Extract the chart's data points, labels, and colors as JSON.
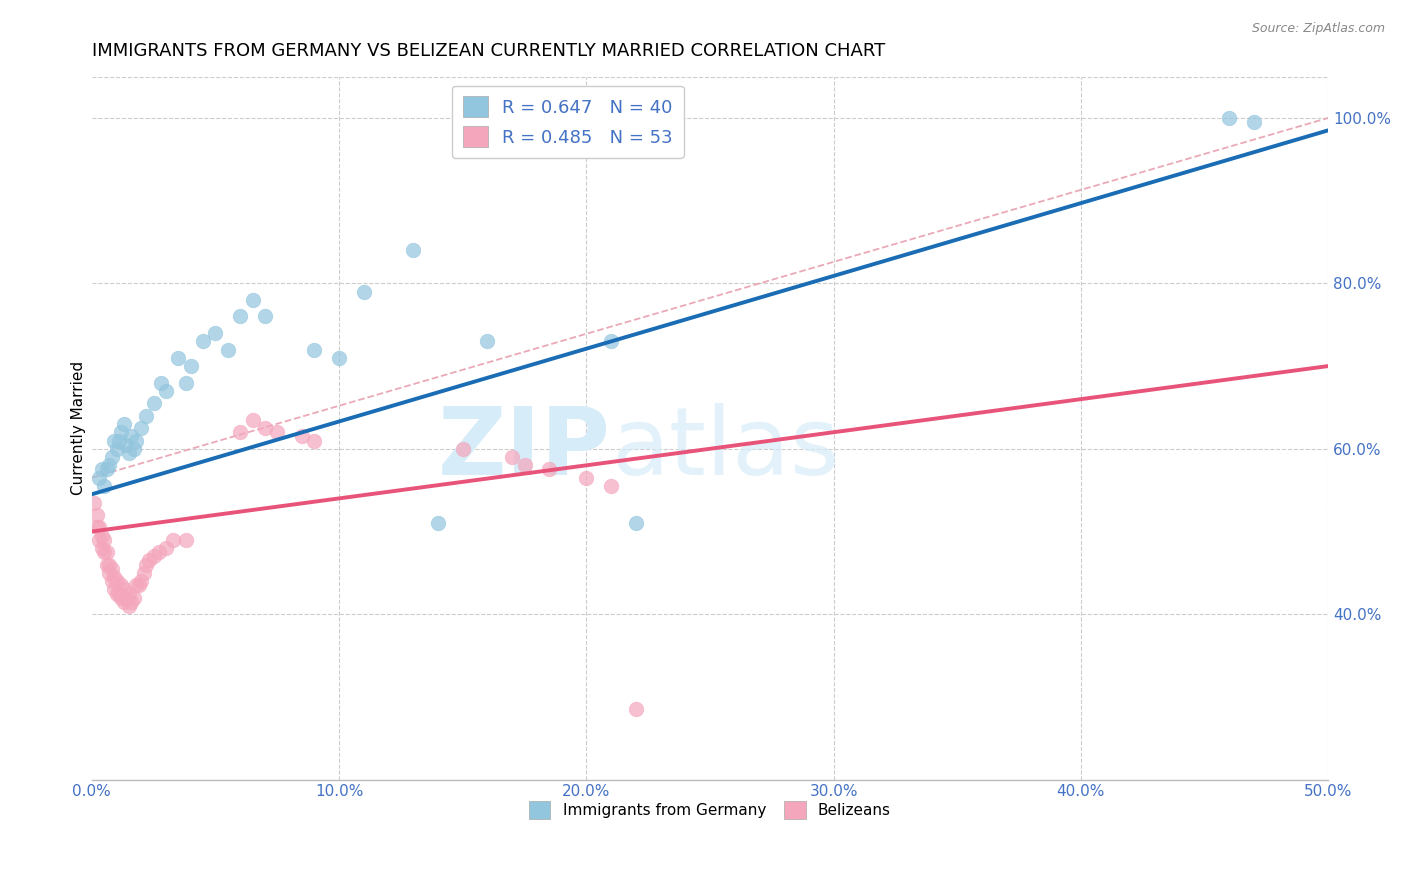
{
  "title": "IMMIGRANTS FROM GERMANY VS BELIZEAN CURRENTLY MARRIED CORRELATION CHART",
  "source": "Source: ZipAtlas.com",
  "ylabel": "Currently Married",
  "xlim": [
    0.0,
    0.5
  ],
  "ylim": [
    0.2,
    1.05
  ],
  "xticks": [
    0.0,
    0.1,
    0.2,
    0.3,
    0.4,
    0.5
  ],
  "xticklabels": [
    "0.0%",
    "10.0%",
    "20.0%",
    "30.0%",
    "40.0%",
    "50.0%"
  ],
  "yticks": [
    0.4,
    0.6,
    0.8,
    1.0
  ],
  "yticklabels": [
    "40.0%",
    "60.0%",
    "80.0%",
    "100.0%"
  ],
  "blue_color": "#92c5de",
  "pink_color": "#f4a6bc",
  "blue_line_color": "#1a6db5",
  "pink_line_color": "#e8537a",
  "diag_line_color": "#e8a0b0",
  "watermark_zip": "ZIP",
  "watermark_atlas": "atlas",
  "watermark_color": "#d6ecf8",
  "title_fontsize": 13,
  "axis_label_fontsize": 11,
  "tick_fontsize": 11,
  "blue_scatter_x": [
    0.003,
    0.004,
    0.005,
    0.006,
    0.007,
    0.008,
    0.009,
    0.01,
    0.011,
    0.012,
    0.013,
    0.014,
    0.015,
    0.016,
    0.017,
    0.018,
    0.02,
    0.022,
    0.025,
    0.028,
    0.03,
    0.035,
    0.038,
    0.04,
    0.045,
    0.05,
    0.055,
    0.06,
    0.065,
    0.07,
    0.09,
    0.1,
    0.11,
    0.13,
    0.14,
    0.16,
    0.21,
    0.22,
    0.46,
    0.47
  ],
  "blue_scatter_y": [
    0.565,
    0.575,
    0.555,
    0.575,
    0.58,
    0.59,
    0.61,
    0.6,
    0.61,
    0.62,
    0.63,
    0.605,
    0.595,
    0.615,
    0.6,
    0.61,
    0.625,
    0.64,
    0.655,
    0.68,
    0.67,
    0.71,
    0.68,
    0.7,
    0.73,
    0.74,
    0.72,
    0.76,
    0.78,
    0.76,
    0.72,
    0.71,
    0.79,
    0.84,
    0.51,
    0.73,
    0.73,
    0.51,
    1.0,
    0.995
  ],
  "pink_scatter_x": [
    0.001,
    0.002,
    0.002,
    0.003,
    0.003,
    0.004,
    0.004,
    0.005,
    0.005,
    0.006,
    0.006,
    0.007,
    0.007,
    0.008,
    0.008,
    0.009,
    0.009,
    0.01,
    0.01,
    0.011,
    0.012,
    0.012,
    0.013,
    0.013,
    0.014,
    0.015,
    0.015,
    0.016,
    0.017,
    0.018,
    0.019,
    0.02,
    0.021,
    0.022,
    0.023,
    0.025,
    0.027,
    0.03,
    0.033,
    0.038,
    0.06,
    0.065,
    0.07,
    0.075,
    0.085,
    0.09,
    0.15,
    0.17,
    0.175,
    0.185,
    0.2,
    0.21,
    0.22
  ],
  "pink_scatter_y": [
    0.535,
    0.52,
    0.505,
    0.505,
    0.49,
    0.495,
    0.48,
    0.49,
    0.475,
    0.475,
    0.46,
    0.46,
    0.45,
    0.455,
    0.44,
    0.445,
    0.43,
    0.44,
    0.425,
    0.425,
    0.435,
    0.42,
    0.43,
    0.415,
    0.42,
    0.425,
    0.41,
    0.415,
    0.42,
    0.435,
    0.435,
    0.44,
    0.45,
    0.46,
    0.465,
    0.47,
    0.475,
    0.48,
    0.49,
    0.49,
    0.62,
    0.635,
    0.625,
    0.62,
    0.615,
    0.61,
    0.6,
    0.59,
    0.58,
    0.575,
    0.565,
    0.555,
    0.285
  ],
  "blue_fit_x": [
    0.0,
    0.5
  ],
  "blue_fit_y": [
    0.545,
    0.985
  ],
  "pink_fit_x": [
    0.0,
    0.5
  ],
  "pink_fit_y": [
    0.5,
    0.7
  ],
  "diag_fit_x": [
    0.0,
    0.5
  ],
  "diag_fit_y": [
    0.565,
    1.0
  ]
}
